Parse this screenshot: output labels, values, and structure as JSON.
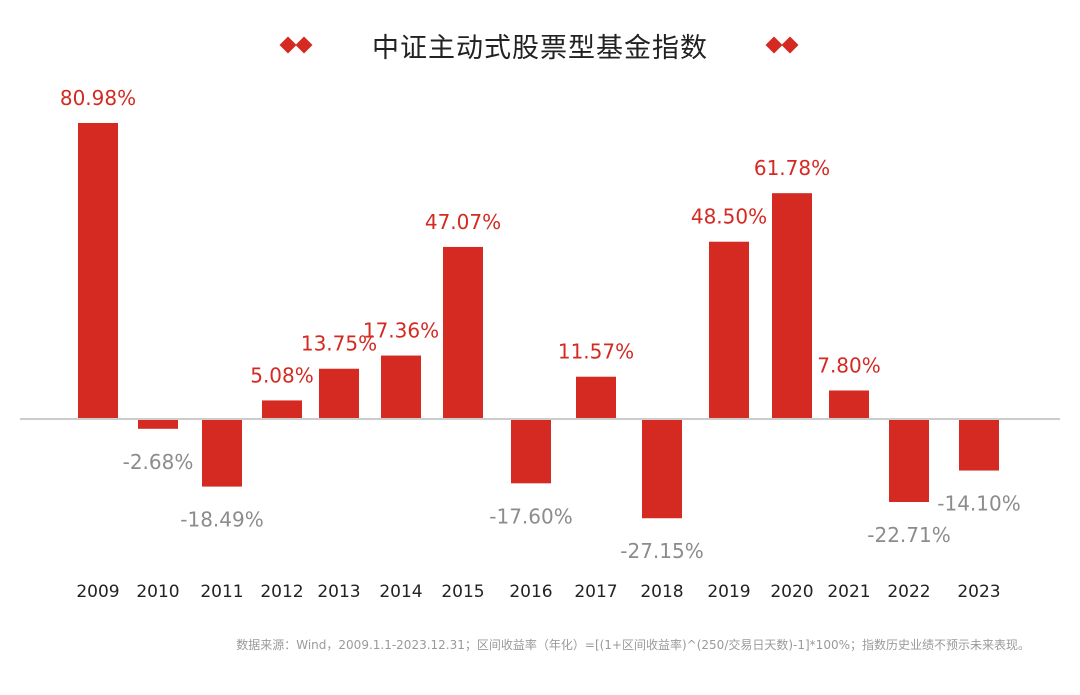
{
  "chart_data": {
    "type": "bar",
    "title": "中证主动式股票型基金指数",
    "categories": [
      "2009",
      "2010",
      "2011",
      "2012",
      "2013",
      "2014",
      "2015",
      "2016",
      "2017",
      "2018",
      "2019",
      "2020",
      "2021",
      "2022",
      "2023"
    ],
    "values": [
      80.98,
      -2.68,
      -18.49,
      5.08,
      13.75,
      17.36,
      47.07,
      -17.6,
      11.57,
      -27.15,
      48.5,
      61.78,
      7.8,
      -22.71,
      -14.1
    ],
    "data_labels": [
      "80.98%",
      "-2.68%",
      "-18.49%",
      "5.08%",
      "13.75%",
      "17.36%",
      "47.07%",
      "-17.60%",
      "11.57%",
      "-27.15%",
      "48.50%",
      "61.78%",
      "7.80%",
      "-22.71%",
      "-14.10%"
    ],
    "xlabel": "",
    "ylabel": "",
    "ylim": [
      -30,
      90
    ],
    "grid": false,
    "legend": null
  },
  "colors": {
    "bar": "#d42a22",
    "positive_label": "#d42a22",
    "negative_label": "#8c8c8c",
    "axis": "#cccccc",
    "tick_label": "#222222",
    "diamond": "#d42a22"
  },
  "footnote": "数据来源：Wind，2009.1.1-2023.12.31；区间收益率（年化）=[(1+区间收益率)^(250/交易日天数)-1]*100%；指数历史业绩不预示未来表现。"
}
